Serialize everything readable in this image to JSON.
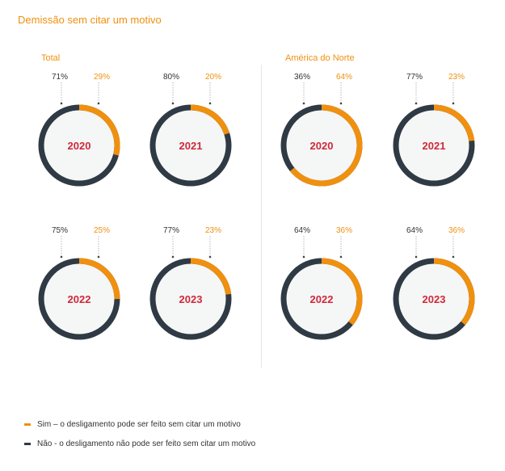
{
  "title": "Demissão sem citar um motivo",
  "colors": {
    "sim": "#f0900f",
    "nao": "#2f3a45",
    "year": "#d0283a",
    "center": "#f5f6f6"
  },
  "legend": [
    {
      "label": "Sim – o desligamento pode ser feito sem citar um motivo",
      "color": "#f0900f"
    },
    {
      "label": "Não - o desligamento não pode ser feito sem citar um motivo",
      "color": "#2f3a45"
    }
  ],
  "chart_data": [
    {
      "type": "pie",
      "group": "Total",
      "categories": [
        "2020",
        "2021",
        "2022",
        "2023"
      ],
      "series": [
        {
          "name": "Sim",
          "values": [
            29,
            20,
            25,
            23
          ]
        },
        {
          "name": "Não",
          "values": [
            71,
            80,
            75,
            77
          ]
        }
      ]
    },
    {
      "type": "pie",
      "group": "América do Norte",
      "categories": [
        "2020",
        "2021",
        "2022",
        "2023"
      ],
      "series": [
        {
          "name": "Sim",
          "values": [
            64,
            23,
            36,
            36
          ]
        },
        {
          "name": "Não",
          "values": [
            36,
            77,
            64,
            64
          ]
        }
      ]
    }
  ]
}
